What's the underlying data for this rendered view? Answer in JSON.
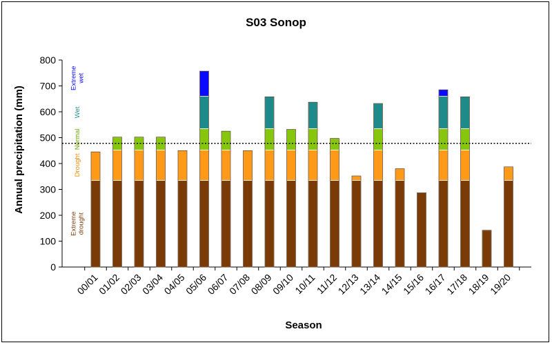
{
  "chart_data": {
    "type": "bar",
    "title": "S03 Sonop",
    "xlabel": "Season",
    "ylabel": "Annual precipitation (mm)",
    "ylim": [
      0,
      800
    ],
    "yticks": [
      0,
      100,
      200,
      300,
      400,
      500,
      600,
      700,
      800
    ],
    "categories": [
      "00/01",
      "01/02",
      "02/03",
      "03/04",
      "04/05",
      "05/06",
      "06/07",
      "07/08",
      "08/09",
      "09/10",
      "10/11",
      "11/12",
      "12/13",
      "13/14",
      "14/15",
      "15/16",
      "16/17",
      "17/18",
      "18/19",
      "19/20"
    ],
    "values": [
      445,
      502,
      502,
      502,
      450,
      757,
      525,
      450,
      658,
      532,
      637,
      497,
      352,
      632,
      380,
      287,
      685,
      658,
      142,
      387
    ],
    "mean_line": 478,
    "grid": false,
    "bands": [
      {
        "name": "Extreme drought",
        "lines": [
          "Extreme",
          "drought"
        ],
        "from": 0,
        "to": 335,
        "color": "#7a3b07",
        "label_color": "#7a3b07"
      },
      {
        "name": "Drought",
        "lines": [
          "Drought"
        ],
        "from": 335,
        "to": 452,
        "color": "#ff9a18",
        "label_color": "#ff8c00"
      },
      {
        "name": "Normal",
        "lines": [
          "Normal"
        ],
        "from": 452,
        "to": 535,
        "color": "#86c70e",
        "label_color": "#6aaa00"
      },
      {
        "name": "Wet",
        "lines": [
          "Wet"
        ],
        "from": 535,
        "to": 660,
        "color": "#1e8a8a",
        "label_color": "#1e8a8a"
      },
      {
        "name": "Extreme wet",
        "lines": [
          "Extreme",
          "wet"
        ],
        "from": 660,
        "to": 800,
        "color": "#0a0aff",
        "label_color": "#0000ff"
      }
    ]
  }
}
